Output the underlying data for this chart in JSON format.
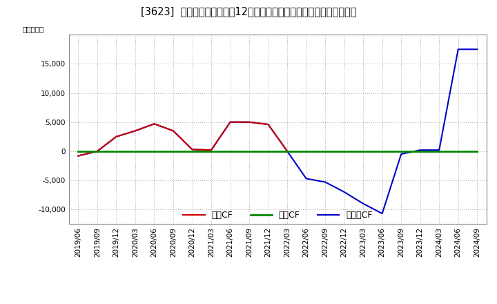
{
  "title": "[3623]  キャッシュフローの12か月移動合計の対前年同期増減額の推移",
  "ylabel": "（百万円）",
  "legend_op": "営業CF",
  "legend_inv": "投賃CF",
  "legend_free": "フリーCF",
  "background_color": "#ffffff",
  "plot_bg_color": "#ffffff",
  "grid_color": "#aaaaaa",
  "x_labels": [
    "2019/06",
    "2019/09",
    "2019/12",
    "2020/03",
    "2020/06",
    "2020/09",
    "2020/12",
    "2021/03",
    "2021/06",
    "2021/09",
    "2021/12",
    "2022/03",
    "2022/06",
    "2022/09",
    "2022/12",
    "2023/03",
    "2023/06",
    "2023/09",
    "2023/12",
    "2024/03",
    "2024/06",
    "2024/09"
  ],
  "free_cf": [
    -800,
    0,
    2500,
    3500,
    4700,
    3500,
    300,
    200,
    5000,
    5000,
    4600,
    0,
    -4700,
    -5300,
    -7000,
    -9000,
    -10700,
    -500,
    200,
    200,
    17500,
    17500
  ],
  "operating_cf": [
    -800,
    0,
    2500,
    3500,
    4700,
    3500,
    300,
    200,
    5000,
    5000,
    4600,
    0,
    null,
    null,
    null,
    null,
    null,
    null,
    null,
    null,
    null,
    null
  ],
  "investing_cf": [
    0,
    0,
    0,
    0,
    0,
    0,
    0,
    0,
    0,
    0,
    0,
    0,
    0,
    0,
    0,
    0,
    0,
    0,
    0,
    0,
    0,
    0
  ],
  "free_cf_color": "#0000cc",
  "operating_cf_color": "#cc0000",
  "investing_cf_color": "#008800",
  "ylim": [
    -12500,
    20000
  ],
  "yticks": [
    -10000,
    -5000,
    0,
    5000,
    10000,
    15000
  ],
  "title_fontsize": 10.5,
  "axis_fontsize": 7.5,
  "legend_fontsize": 9
}
